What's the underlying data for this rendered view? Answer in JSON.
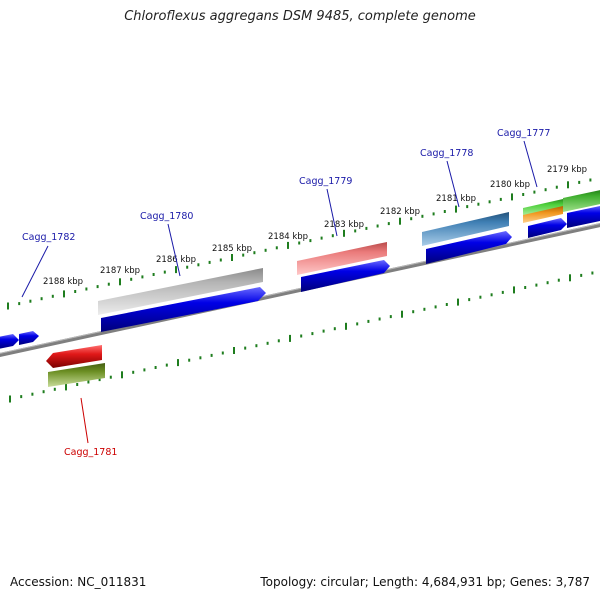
{
  "title": "Chloroflexus aggregans DSM 9485, complete genome",
  "footer": {
    "accession": "Accession: NC_011831",
    "summary": "Topology: circular; Length: 4,684,931 bp; Genes: 3,787"
  },
  "colors": {
    "backbone": "#7f7f7f",
    "tick": "#1e7d1e",
    "cds": "#0000e6",
    "label_forward": "#1a1aa8",
    "label_reverse": "#cc0000"
  },
  "ruler_labels": [
    {
      "kbp": 2188,
      "text": "2188 kbp"
    },
    {
      "kbp": 2187,
      "text": "2187 kbp"
    },
    {
      "kbp": 2186,
      "text": "2186 kbp"
    },
    {
      "kbp": 2185,
      "text": "2185 kbp"
    },
    {
      "kbp": 2184,
      "text": "2184 kbp"
    },
    {
      "kbp": 2183,
      "text": "2183 kbp"
    },
    {
      "kbp": 2182,
      "text": "2182 kbp"
    },
    {
      "kbp": 2181,
      "text": "2181 kbp"
    },
    {
      "kbp": 2180,
      "text": "2180 kbp"
    },
    {
      "kbp": 2179,
      "text": "2179 kbp"
    }
  ],
  "gene_labels": [
    {
      "name": "Cagg_1782",
      "strand": "forward"
    },
    {
      "name": "Cagg_1780",
      "strand": "forward"
    },
    {
      "name": "Cagg_1779",
      "strand": "forward"
    },
    {
      "name": "Cagg_1778",
      "strand": "forward"
    },
    {
      "name": "Cagg_1777",
      "strand": "forward"
    },
    {
      "name": "Cagg_1781",
      "strand": "reverse"
    }
  ],
  "features": [
    {
      "id": "feature-gray",
      "color": "#b4b4b4",
      "strand": "forward"
    },
    {
      "id": "feature-pink",
      "color": "#ea7a7a",
      "strand": "forward"
    },
    {
      "id": "feature-steelblue",
      "color": "#3f7fb4",
      "strand": "forward"
    },
    {
      "id": "feature-lightgreen",
      "color": "#4ccf3a",
      "strand": "forward"
    },
    {
      "id": "feature-orange",
      "color": "#f0961e",
      "strand": "forward"
    },
    {
      "id": "feature-green",
      "color": "#3fae2e",
      "strand": "forward"
    },
    {
      "id": "feature-red",
      "color": "#e01818",
      "strand": "reverse"
    },
    {
      "id": "feature-olive",
      "color": "#6b8e23",
      "strand": "reverse"
    }
  ]
}
